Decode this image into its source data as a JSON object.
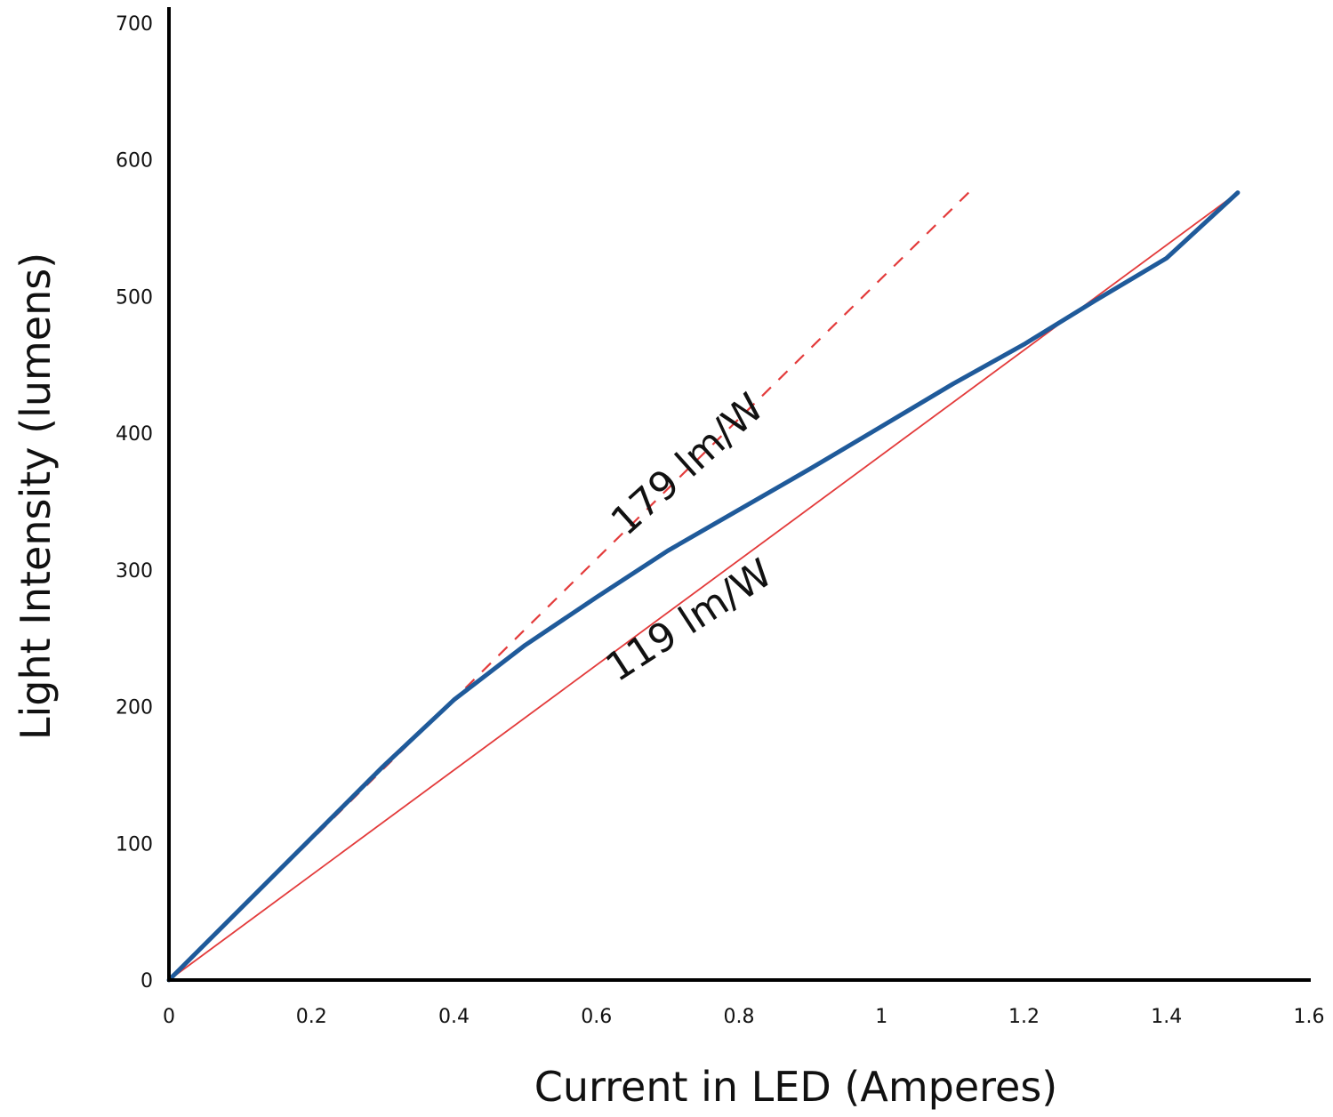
{
  "chart_data": {
    "type": "line",
    "title": "",
    "xlabel": "Current in LED (Amperes)",
    "ylabel": "Light Intensity (lumens)",
    "xlim": [
      0,
      1.6
    ],
    "ylim": [
      0,
      700
    ],
    "x_ticks": [
      "0",
      "0.2",
      "0.4",
      "0.6",
      "0.8",
      "1",
      "1.2",
      "1.4",
      "1.6"
    ],
    "y_ticks": [
      "0",
      "100",
      "200",
      "300",
      "400",
      "500",
      "600",
      "700"
    ],
    "grid": false,
    "legend": "none",
    "series": [
      {
        "style": "solid-thick",
        "color": "#1f5a9a",
        "x": [
          0,
          0.1,
          0.2,
          0.3,
          0.4,
          0.5,
          0.6,
          0.7,
          0.8,
          0.9,
          1.0,
          1.1,
          1.2,
          1.3,
          1.4,
          1.5
        ],
        "values": [
          0,
          52,
          104,
          156,
          205,
          245,
          280,
          314,
          344,
          374,
          405,
          436,
          465,
          497,
          528,
          576
        ]
      },
      {
        "style": "dashed",
        "color": "#e33b3b",
        "x": [
          0,
          1.13
        ],
        "values": [
          0,
          580
        ]
      },
      {
        "style": "solid-thin",
        "color": "#e33b3b",
        "x": [
          0,
          1.5
        ],
        "values": [
          0,
          576
        ]
      }
    ],
    "annotations": [
      {
        "text": "179 lm/W",
        "x": 0.74,
        "y": 370,
        "angle_deg": -42
      },
      {
        "text": "119 lm/W",
        "x": 0.74,
        "y": 255,
        "angle_deg": -33
      }
    ]
  }
}
